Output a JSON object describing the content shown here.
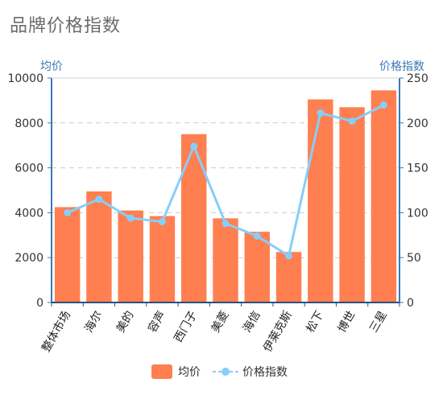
{
  "chart_data": {
    "type": "bar",
    "title": "品牌价格指数",
    "categories": [
      "整体市场",
      "海尔",
      "美的",
      "容声",
      "西门子",
      "美菱",
      "海信",
      "伊莱克斯",
      "松下",
      "博世",
      "三星"
    ],
    "y_left": {
      "label": "均价",
      "ticks": [
        "0",
        "2000",
        "4000",
        "6000",
        "8000",
        "10000"
      ],
      "lim": [
        0,
        10000
      ]
    },
    "y_right": {
      "label": "价格指数",
      "ticks": [
        "0",
        "50",
        "100",
        "150",
        "200",
        "250"
      ],
      "lim": [
        0,
        250
      ]
    },
    "series": [
      {
        "name": "均价",
        "type": "bar",
        "axis": "left",
        "color": "#ff7f50",
        "values": [
          4250,
          4950,
          4100,
          3850,
          7500,
          3750,
          3150,
          2250,
          9050,
          8700,
          9450
        ]
      },
      {
        "name": "价格指数",
        "type": "line",
        "axis": "right",
        "color": "#87cefa",
        "values": [
          100,
          115,
          94,
          90,
          174,
          88,
          74,
          52,
          211,
          202,
          220
        ]
      }
    ],
    "grid": "horizontal-dashed",
    "legend": "bottom-center"
  }
}
